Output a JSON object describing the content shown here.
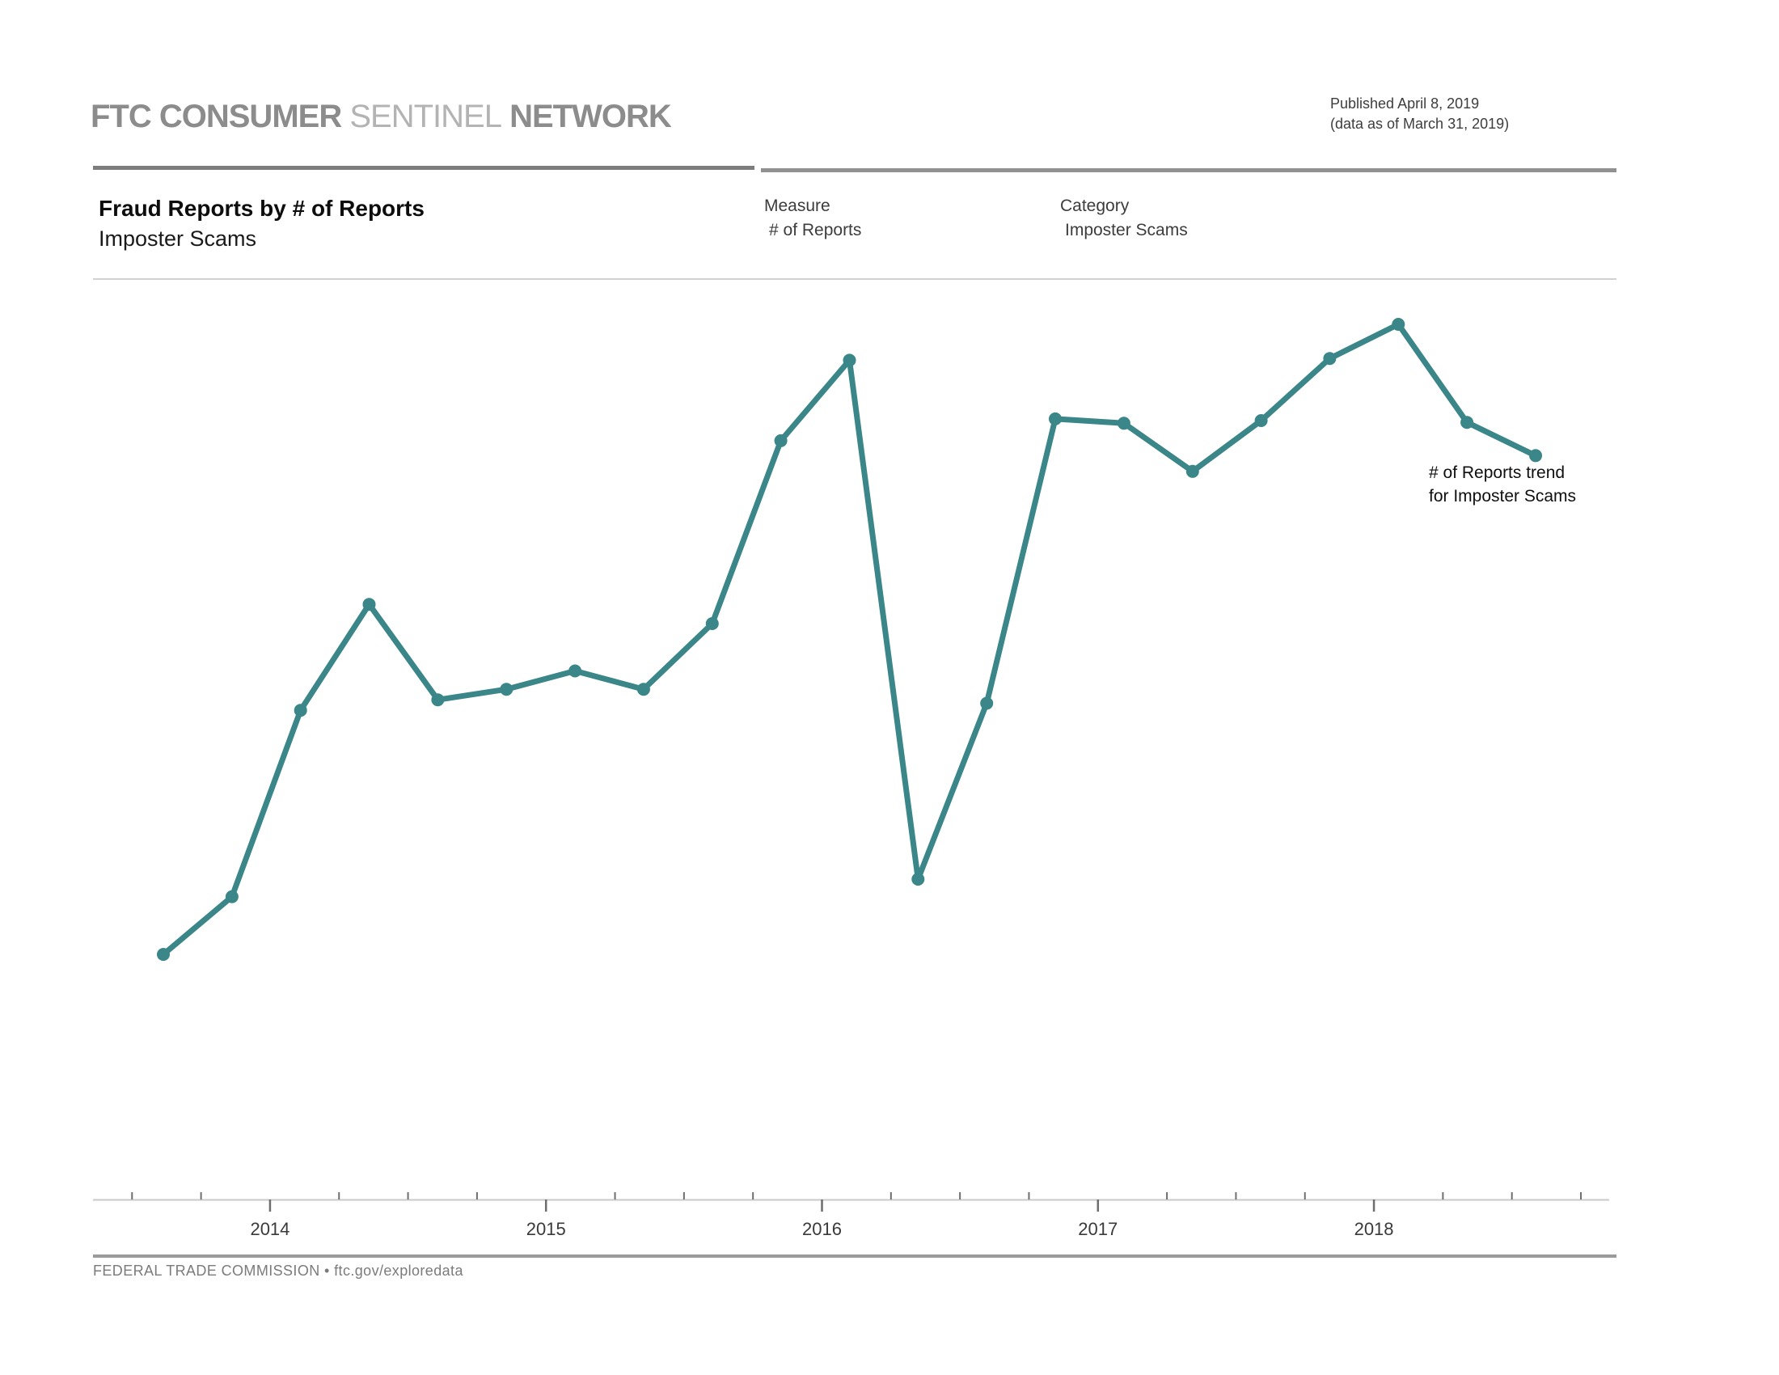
{
  "header": {
    "brand_part1": "FTC CONSUMER",
    "brand_part2": "SENTINEL",
    "brand_part3": "NETWORK",
    "published_line1": "Published April 8, 2019",
    "published_line2": "(data as of March 31, 2019)"
  },
  "report": {
    "title": "Fraud Reports by # of Reports",
    "subtitle": "Imposter Scams",
    "measure_label": "Measure",
    "measure_value": "# of Reports",
    "category_label": "Category",
    "category_value": "Imposter Scams"
  },
  "chart_data": {
    "type": "line",
    "title": "Fraud Reports by # of Reports — Imposter Scams",
    "xlabel": "",
    "ylabel": "",
    "x_unit": "quarter",
    "categories": [
      "2013 Q3",
      "2013 Q4",
      "2014 Q1",
      "2014 Q2",
      "2014 Q3",
      "2014 Q4",
      "2015 Q1",
      "2015 Q2",
      "2015 Q3",
      "2015 Q4",
      "2016 Q1",
      "2016 Q2",
      "2016 Q3",
      "2016 Q4",
      "2017 Q1",
      "2017 Q2",
      "2017 Q3",
      "2017 Q4",
      "2018 Q1",
      "2018 Q2",
      "2018 Q3"
    ],
    "series": [
      {
        "name": "# of Reports trend for Imposter Scams",
        "values_relative_0to100": [
          28.0,
          34.6,
          55.9,
          68.0,
          57.1,
          58.3,
          60.4,
          58.3,
          65.8,
          86.7,
          95.9,
          36.6,
          56.7,
          89.2,
          88.7,
          83.2,
          89.0,
          96.1,
          100.0,
          88.8,
          85.0
        ]
      }
    ],
    "y_axis_note": "no y-axis scale shown in chart; values are relative heights (max peak = 100)",
    "x_tick_labels": [
      "2014",
      "2015",
      "2016",
      "2017",
      "2018"
    ],
    "minor_ticks": "quarterly",
    "grid": "off",
    "legend_position": "none",
    "annotation_line1": "# of Reports trend",
    "annotation_line2": "for Imposter Scams",
    "line_color": "#3a8688",
    "marker": "dot"
  },
  "footer": {
    "agency": "FEDERAL TRADE COMMISSION",
    "separator": "•",
    "url": "ftc.gov/exploredata"
  },
  "colors": {
    "accent_teal": "#3a8688",
    "brand_gray": "#8c8c8c",
    "axis_gray": "#c9c9c9",
    "tick_gray": "#6e6e6e",
    "label_gray": "#3c3c3c"
  }
}
